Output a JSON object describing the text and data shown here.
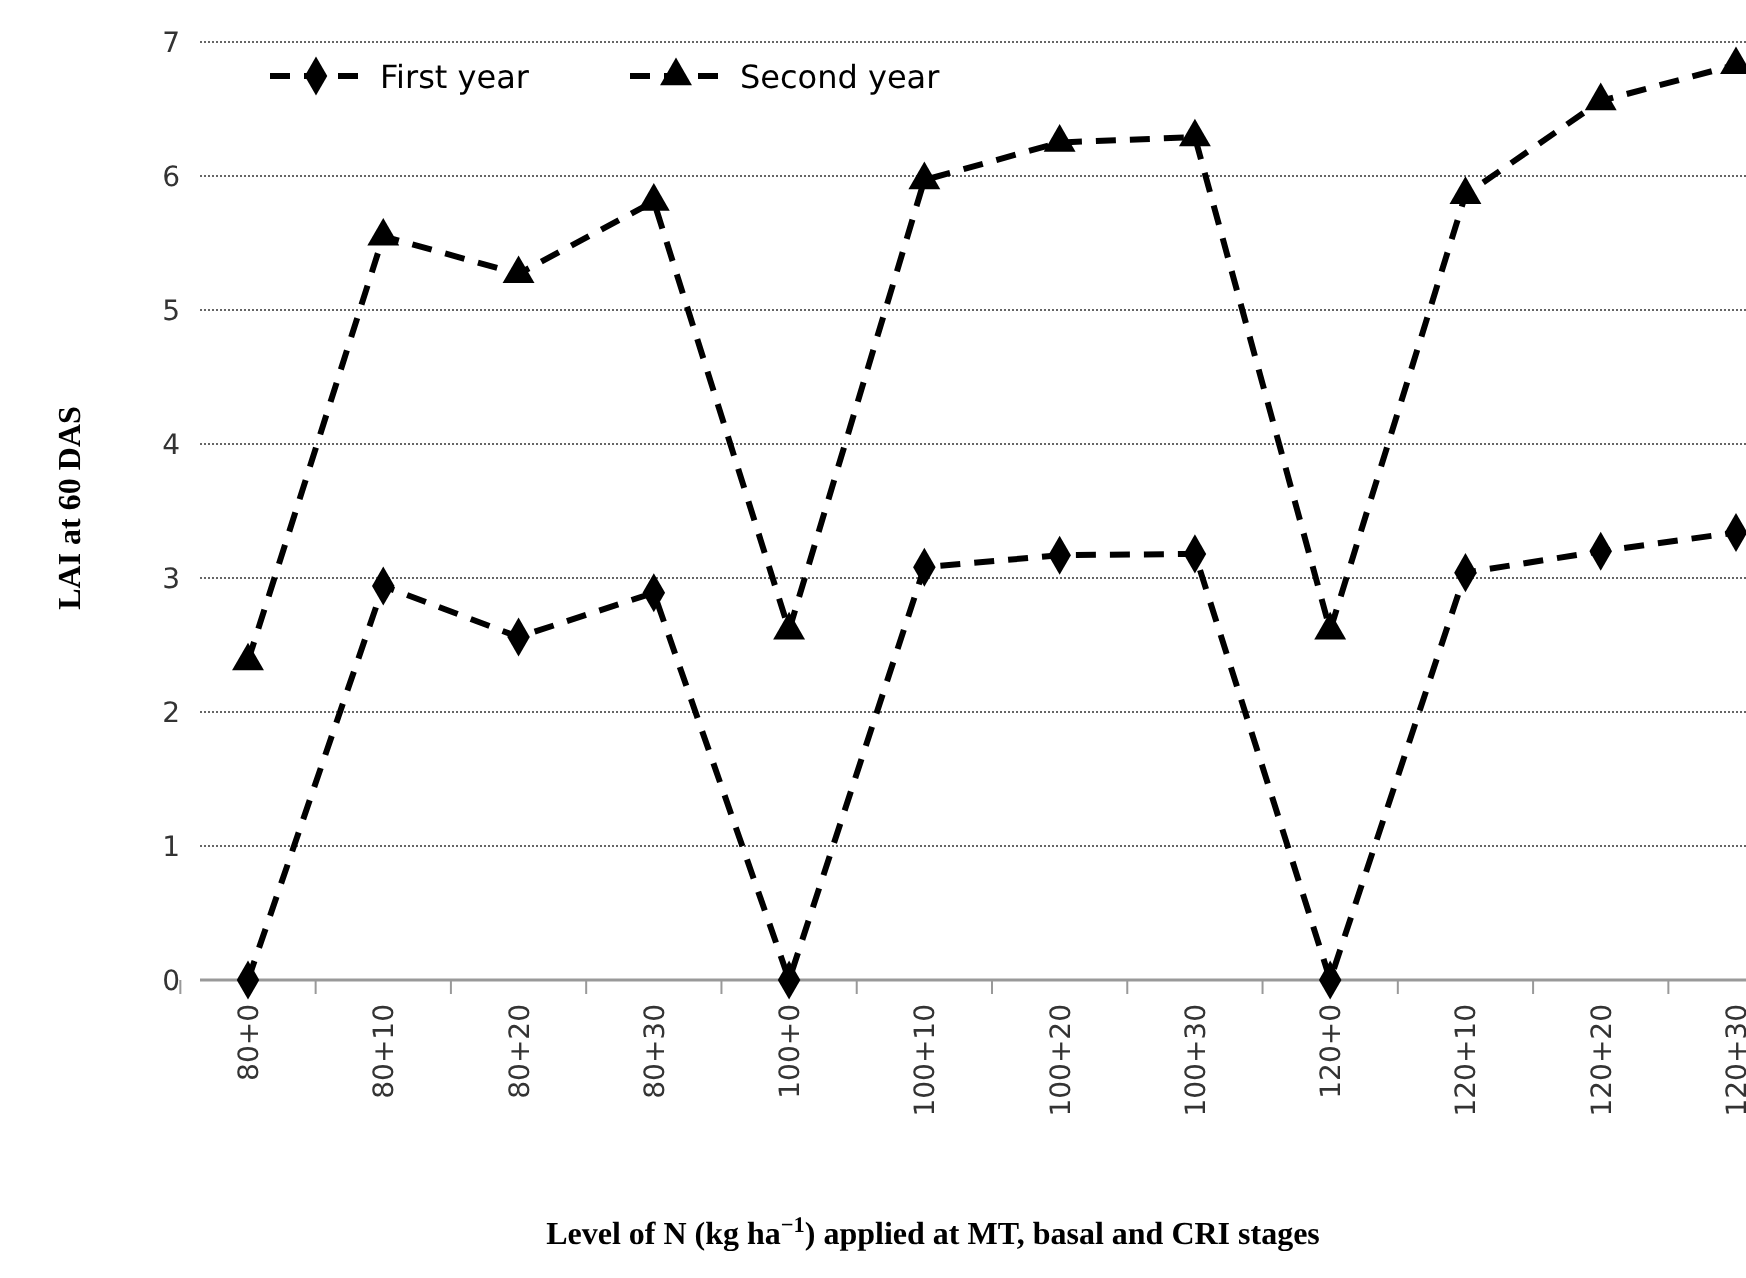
{
  "chart_data": {
    "type": "line",
    "xlabel": "Level of N (kg ha$^{−1}$) applied at MT, basal and CRI stages",
    "ylabel": "LAI at 60 DAS",
    "categories": [
      "80+0",
      "80+10",
      "80+20",
      "80+30",
      "100+0",
      "100+10",
      "100+20",
      "100+30",
      "120+0",
      "120+10",
      "120+20",
      "120+30"
    ],
    "series": [
      {
        "name": "First year",
        "color": "#000000",
        "marker": "diamond",
        "values": [
          0,
          2.94,
          2.56,
          2.89,
          0,
          3.08,
          3.17,
          3.18,
          0,
          3.04,
          3.2,
          3.34
        ]
      },
      {
        "name": "Second year",
        "color": "#000000",
        "marker": "triangle",
        "values": [
          2.38,
          5.55,
          5.27,
          5.81,
          2.61,
          5.97,
          6.25,
          6.29,
          2.61,
          5.86,
          6.56,
          6.83
        ]
      }
    ],
    "ylim": [
      0,
      7
    ],
    "yticks": [
      0,
      1,
      2,
      3,
      4,
      5,
      6,
      7
    ],
    "grid": "y",
    "legend": "top left",
    "line_style": "dashed"
  }
}
